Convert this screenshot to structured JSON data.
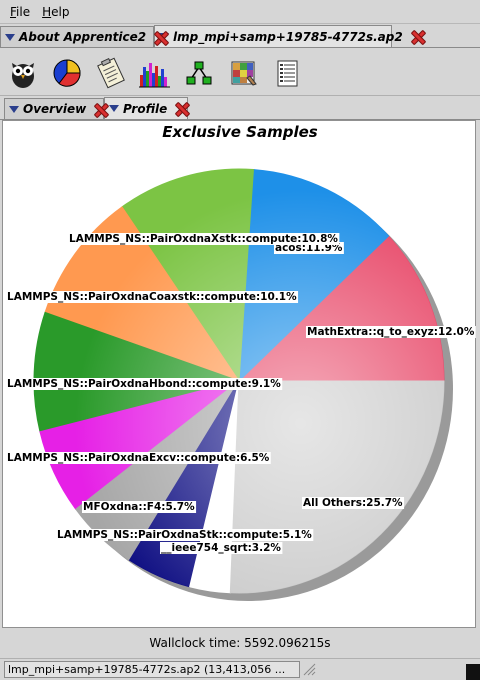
{
  "menu": [
    "File",
    "Help"
  ],
  "top_tabs": [
    {
      "label": "About Apprentice2",
      "active": false
    },
    {
      "label": "lmp_mpi+samp+19785-4772s.ap2",
      "active": true
    }
  ],
  "toolbar": {
    "icons": [
      "owl-icon",
      "pie-chart-icon",
      "clipboard-icon",
      "histogram-icon",
      "call-tree-icon",
      "grid-map-icon",
      "report-list-icon"
    ]
  },
  "sub_tabs": [
    {
      "label": "Overview",
      "active": false
    },
    {
      "label": "Profile",
      "active": true
    }
  ],
  "chart_data": {
    "type": "pie",
    "title": "Exclusive Samples",
    "slices": [
      {
        "label": "MathExtra::q_to_exyz",
        "value": 12.0,
        "text": "MathExtra::q_to_exyz:12.0%",
        "color": "#e84a6a"
      },
      {
        "label": "acos",
        "value": 11.9,
        "text": "acos:11.9%",
        "color": "#1e90e8"
      },
      {
        "label": "LAMMPS_NS::PairOxdnaXstk::compute",
        "value": 10.8,
        "text": "LAMMPS_NS::PairOxdnaXstk::compute:10.8%",
        "color": "#7cc444"
      },
      {
        "label": "LAMMPS_NS::PairOxdnaCoaxstk::compute",
        "value": 10.1,
        "text": "LAMMPS_NS::PairOxdnaCoaxstk::compute:10.1%",
        "color": "#ff9950"
      },
      {
        "label": "LAMMPS_NS::PairOxdnaHbond::compute",
        "value": 9.1,
        "text": "LAMMPS_NS::PairOxdnaHbond::compute:9.1%",
        "color": "#2a9a2a"
      },
      {
        "label": "LAMMPS_NS::PairOxdnaExcv::compute",
        "value": 6.5,
        "text": "LAMMPS_NS::PairOxdnaExcv::compute:6.5%",
        "color": "#e620e6"
      },
      {
        "label": "MFOxdna::F4",
        "value": 5.7,
        "text": "MFOxdna::F4:5.7%",
        "color": "#a6a6a6"
      },
      {
        "label": "LAMMPS_NS::PairOxdnaStk::compute",
        "value": 5.1,
        "text": "LAMMPS_NS::PairOxdnaStk::compute:5.1%",
        "color": "#0a0a80"
      },
      {
        "label": "__ieee754_sqrt",
        "value": 3.2,
        "text": "__ieee754_sqrt:3.2%",
        "color": "#ffffff"
      },
      {
        "label": "All Others",
        "value": 25.7,
        "text": "All Others:25.7%",
        "color": "#c8c8c8"
      }
    ],
    "footer": "Wallclock time: 5592.096215s"
  },
  "status_bar": {
    "text": "lmp_mpi+samp+19785-4772s.ap2 (13,413,056 ..."
  }
}
